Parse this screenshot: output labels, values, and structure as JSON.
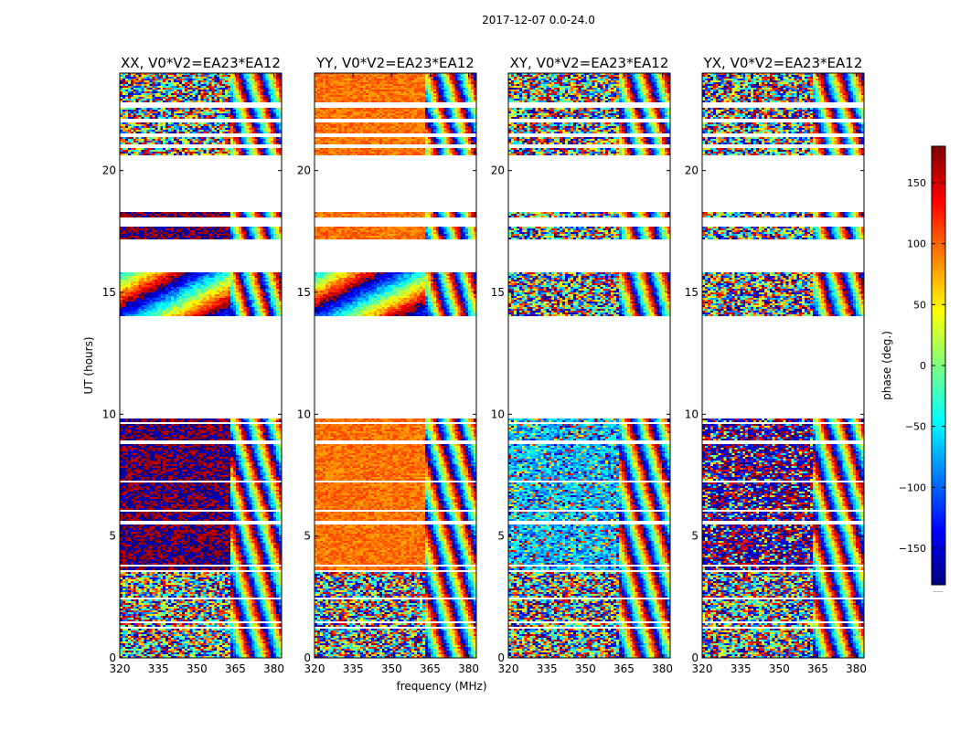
{
  "chart_data": {
    "type": "heatmap",
    "suptitle": "2017-12-07 0.0-24.0",
    "xlabel": "frequency (MHz)",
    "ylabel": "UT (hours)",
    "colorbar_label": "phase (deg.)",
    "colormap": "jet",
    "colorbar_range": [
      -180,
      180
    ],
    "colorbar_ticks": [
      -150,
      -100,
      -50,
      0,
      50,
      100,
      150
    ],
    "colorbar_tick_labels": [
      "−150",
      "−100",
      "−50",
      "0",
      "50",
      "100",
      "150"
    ],
    "colorbar_under_label": "......",
    "xlim": [
      320,
      383
    ],
    "ylim": [
      0,
      24
    ],
    "x_ticks": [
      320,
      335,
      350,
      365,
      380
    ],
    "x_tick_labels": [
      "320",
      "335",
      "350",
      "365",
      "380"
    ],
    "y_ticks": [
      0,
      5,
      10,
      15,
      20
    ],
    "y_tick_labels": [
      "0",
      "5",
      "10",
      "15",
      "20"
    ],
    "data_blocks_ut": [
      [
        0.0,
        1.2
      ],
      [
        1.3,
        2.4
      ],
      [
        2.5,
        3.5
      ],
      [
        3.6,
        9.8
      ],
      [
        14.0,
        15.8
      ],
      [
        17.2,
        17.7
      ],
      [
        18.1,
        18.3
      ],
      [
        20.6,
        24.0
      ]
    ],
    "block_gaps_ut": [
      [
        1.45,
        1.5
      ],
      [
        3.75,
        3.8
      ],
      [
        5.5,
        5.6
      ],
      [
        6.0,
        6.05
      ],
      [
        7.2,
        7.3
      ],
      [
        8.8,
        8.9
      ],
      [
        9.6,
        9.7
      ],
      [
        17.45,
        17.5
      ],
      [
        20.95,
        21.1
      ],
      [
        21.4,
        21.5
      ],
      [
        22.0,
        22.1
      ],
      [
        22.6,
        22.8
      ],
      [
        23.6,
        23.65
      ]
    ],
    "panels": [
      {
        "title": "XX, V0*V2=EA23*EA12",
        "pol": "XX",
        "baseline": "V0*V2=EA23*EA12",
        "low_band_phase_deg": -170,
        "low_band_phase_alt_deg": 170,
        "high_band_start_mhz": 363,
        "character": "coherent near ±180° below 363 MHz, wrapping fringes above"
      },
      {
        "title": "YY, V0*V2=EA23*EA12",
        "pol": "YY",
        "baseline": "V0*V2=EA23*EA12",
        "low_band_phase_deg": 95,
        "low_band_phase_alt_deg": 95,
        "high_band_start_mhz": 363,
        "character": "coherent near +95° below 363 MHz, wrapping fringes above"
      },
      {
        "title": "XY, V0*V2=EA23*EA12",
        "pol": "XY",
        "baseline": "V0*V2=EA23*EA12",
        "low_band_phase_deg": -70,
        "low_band_phase_alt_deg": -70,
        "high_band_start_mhz": 363,
        "character": "noisy, weak bias toward −70° in 4–9 UT"
      },
      {
        "title": "YX, V0*V2=EA23*EA12",
        "pol": "YX",
        "baseline": "V0*V2=EA23*EA12",
        "low_band_phase_deg": -150,
        "low_band_phase_alt_deg": 160,
        "high_band_start_mhz": 363,
        "character": "noisy, weak bias toward ±180° in 4–9 UT"
      }
    ]
  }
}
